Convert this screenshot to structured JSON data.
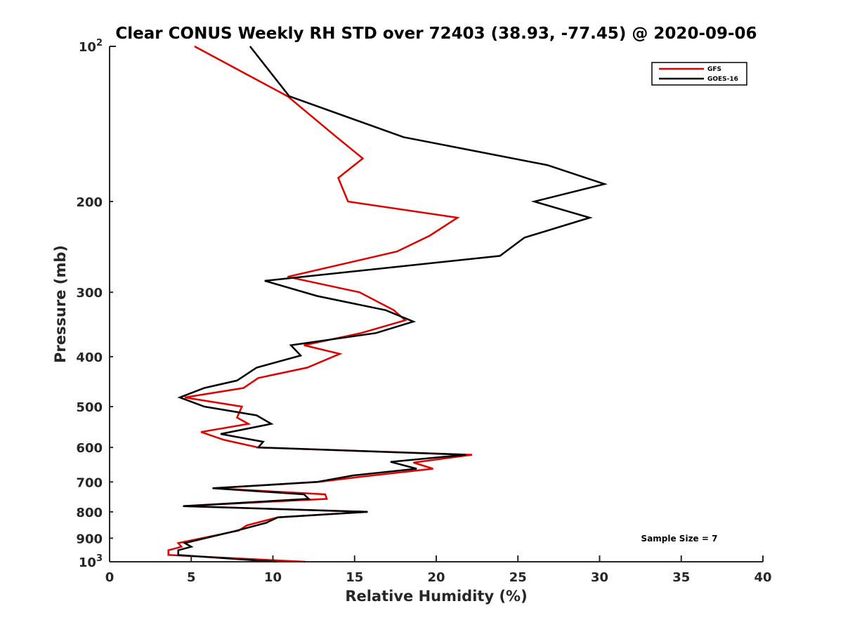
{
  "chart_data": {
    "type": "line",
    "title": "Clear CONUS Weekly RH STD over 72403 (38.93, -77.45) @ 2020-09-06",
    "xlabel": "Relative Humidity (%)",
    "ylabel": "Pressure (mb)",
    "xlim": [
      0,
      40
    ],
    "ylim": [
      100,
      1000
    ],
    "y_scale": "log",
    "y_reversed": true,
    "x_ticks": [
      0,
      5,
      10,
      15,
      20,
      25,
      30,
      35,
      40
    ],
    "y_ticks": [
      {
        "value": 100,
        "base": "10",
        "exp": "2"
      },
      {
        "value": 200,
        "label": "200"
      },
      {
        "value": 300,
        "label": "300"
      },
      {
        "value": 400,
        "label": "400"
      },
      {
        "value": 500,
        "label": "500"
      },
      {
        "value": 600,
        "label": "600"
      },
      {
        "value": 700,
        "label": "700"
      },
      {
        "value": 800,
        "label": "800"
      },
      {
        "value": 900,
        "label": "900"
      },
      {
        "value": 1000,
        "base": "10",
        "exp": "3"
      }
    ],
    "grid": false,
    "legend_position": "top-right",
    "annotation": "Sample Size = 7",
    "series": [
      {
        "name": "GFS",
        "color": "#e00000",
        "points": [
          [
            5.2,
            100
          ],
          [
            10.9,
            125
          ],
          [
            13.9,
            150
          ],
          [
            15.5,
            165
          ],
          [
            14.0,
            180
          ],
          [
            14.6,
            200
          ],
          [
            21.3,
            215
          ],
          [
            19.6,
            233
          ],
          [
            17.6,
            250
          ],
          [
            10.9,
            280
          ],
          [
            15.3,
            300
          ],
          [
            17.4,
            325
          ],
          [
            18.1,
            340
          ],
          [
            15.4,
            360
          ],
          [
            11.9,
            380
          ],
          [
            14.1,
            395
          ],
          [
            12.1,
            420
          ],
          [
            9.1,
            440
          ],
          [
            8.2,
            460
          ],
          [
            4.6,
            480
          ],
          [
            8.1,
            500
          ],
          [
            7.8,
            525
          ],
          [
            8.5,
            540
          ],
          [
            5.6,
            560
          ],
          [
            7.0,
            580
          ],
          [
            9.1,
            600
          ],
          [
            22.2,
            620
          ],
          [
            18.6,
            642
          ],
          [
            19.8,
            660
          ],
          [
            15.2,
            685
          ],
          [
            12.8,
            700
          ],
          [
            6.4,
            720
          ],
          [
            13.2,
            740
          ],
          [
            13.3,
            755
          ],
          [
            4.5,
            780
          ],
          [
            15.8,
            800
          ],
          [
            10.3,
            820
          ],
          [
            8.4,
            850
          ],
          [
            7.9,
            870
          ],
          [
            4.2,
            920
          ],
          [
            4.4,
            935
          ],
          [
            3.6,
            950
          ],
          [
            3.6,
            970
          ],
          [
            12.0,
            1000
          ]
        ]
      },
      {
        "name": "GOES-16",
        "color": "#000000",
        "points": [
          [
            8.6,
            100
          ],
          [
            11.0,
            125
          ],
          [
            18.0,
            150
          ],
          [
            26.8,
            170
          ],
          [
            30.3,
            185
          ],
          [
            26.0,
            200
          ],
          [
            29.4,
            215
          ],
          [
            25.4,
            235
          ],
          [
            23.9,
            255
          ],
          [
            9.5,
            285
          ],
          [
            12.7,
            305
          ],
          [
            16.9,
            325
          ],
          [
            18.6,
            342
          ],
          [
            16.3,
            360
          ],
          [
            11.1,
            380
          ],
          [
            11.7,
            398
          ],
          [
            9.0,
            420
          ],
          [
            7.8,
            445
          ],
          [
            5.8,
            460
          ],
          [
            4.3,
            480
          ],
          [
            5.8,
            500
          ],
          [
            9.0,
            520
          ],
          [
            9.9,
            540
          ],
          [
            6.8,
            565
          ],
          [
            9.4,
            585
          ],
          [
            9.1,
            600
          ],
          [
            21.8,
            620
          ],
          [
            17.2,
            640
          ],
          [
            18.8,
            660
          ],
          [
            14.9,
            680
          ],
          [
            12.7,
            700
          ],
          [
            6.3,
            720
          ],
          [
            11.9,
            740
          ],
          [
            12.2,
            755
          ],
          [
            4.5,
            780
          ],
          [
            15.8,
            800
          ],
          [
            10.3,
            820
          ],
          [
            9.6,
            840
          ],
          [
            7.8,
            870
          ],
          [
            4.6,
            920
          ],
          [
            5.0,
            935
          ],
          [
            4.2,
            950
          ],
          [
            4.2,
            970
          ],
          [
            10.2,
            1000
          ]
        ]
      }
    ]
  }
}
